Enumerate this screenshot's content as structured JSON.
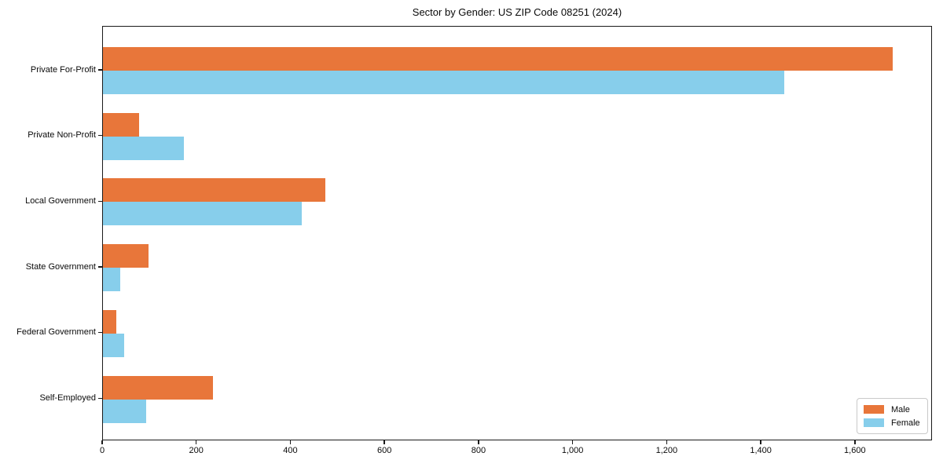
{
  "title": "Sector by Gender: US ZIP Code 08251 (2024)",
  "chart_data": {
    "type": "bar",
    "orientation": "horizontal",
    "title": "Sector by Gender: US ZIP Code 08251 (2024)",
    "categories": [
      "Private For-Profit",
      "Private Non-Profit",
      "Local Government",
      "State Government",
      "Federal Government",
      "Self-Employed"
    ],
    "series": [
      {
        "name": "Male",
        "color": "#e8763a",
        "values": [
          1678,
          76,
          473,
          96,
          28,
          233
        ]
      },
      {
        "name": "Female",
        "color": "#87ceeb",
        "values": [
          1449,
          172,
          422,
          37,
          45,
          92
        ]
      }
    ],
    "xlim": [
      0,
      1764
    ],
    "xticks": [
      0,
      200,
      400,
      600,
      800,
      1000,
      1200,
      1400,
      1600
    ],
    "xtick_labels": [
      "0",
      "200",
      "400",
      "600",
      "800",
      "1,000",
      "1,200",
      "1,400",
      "1,600"
    ],
    "grid": false,
    "legend_position": "lower right",
    "plot_background": "#ffffff",
    "spine_color": "#1a1a1a"
  },
  "legend": {
    "items": [
      {
        "label": "Male",
        "color": "#e8763a"
      },
      {
        "label": "Female",
        "color": "#87ceeb"
      }
    ]
  }
}
